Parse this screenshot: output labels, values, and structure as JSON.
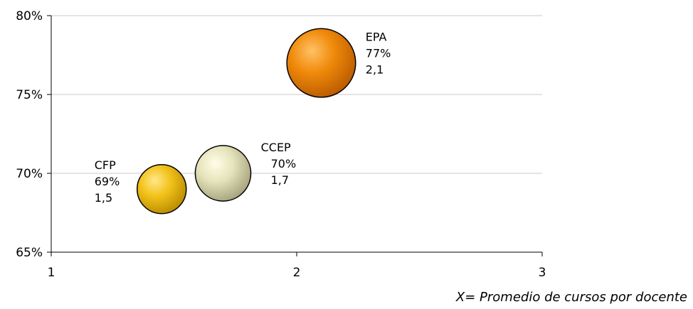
{
  "chart_data": {
    "type": "bubble",
    "xlabel": "X= Promedio de cursos por docente",
    "ylabel": "",
    "xlim": [
      1,
      3
    ],
    "ylim": [
      0.65,
      0.8
    ],
    "x_ticks": [
      {
        "value": 1,
        "label": "1"
      },
      {
        "value": 2,
        "label": "2"
      },
      {
        "value": 3,
        "label": "3"
      }
    ],
    "y_ticks": [
      {
        "value": 0.65,
        "label": "65%"
      },
      {
        "value": 0.7,
        "label": "70%"
      },
      {
        "value": 0.75,
        "label": "75%"
      },
      {
        "value": 0.8,
        "label": "80%"
      }
    ],
    "grid": "horizontal",
    "points": [
      {
        "name": "CFP",
        "x": 1.45,
        "y": 0.69,
        "size": 1.5,
        "labels": [
          "CFP",
          "69%",
          "1,5"
        ],
        "label_side": "left",
        "colors": {
          "light": "#ffe88a",
          "mid": "#f2c21a",
          "dark": "#b88a00"
        }
      },
      {
        "name": "CCEP",
        "x": 1.7,
        "y": 0.7,
        "size": 1.7,
        "labels": [
          "CCEP",
          "70%",
          "1,7"
        ],
        "label_side": "right",
        "colors": {
          "light": "#fffde8",
          "mid": "#e6e4bc",
          "dark": "#a3a07a"
        }
      },
      {
        "name": "EPA",
        "x": 2.1,
        "y": 0.77,
        "size": 2.1,
        "labels": [
          "EPA",
          "77%",
          "2,1"
        ],
        "label_side": "right",
        "colors": {
          "light": "#ffc266",
          "mid": "#f08a0a",
          "dark": "#b85a00"
        }
      }
    ]
  }
}
